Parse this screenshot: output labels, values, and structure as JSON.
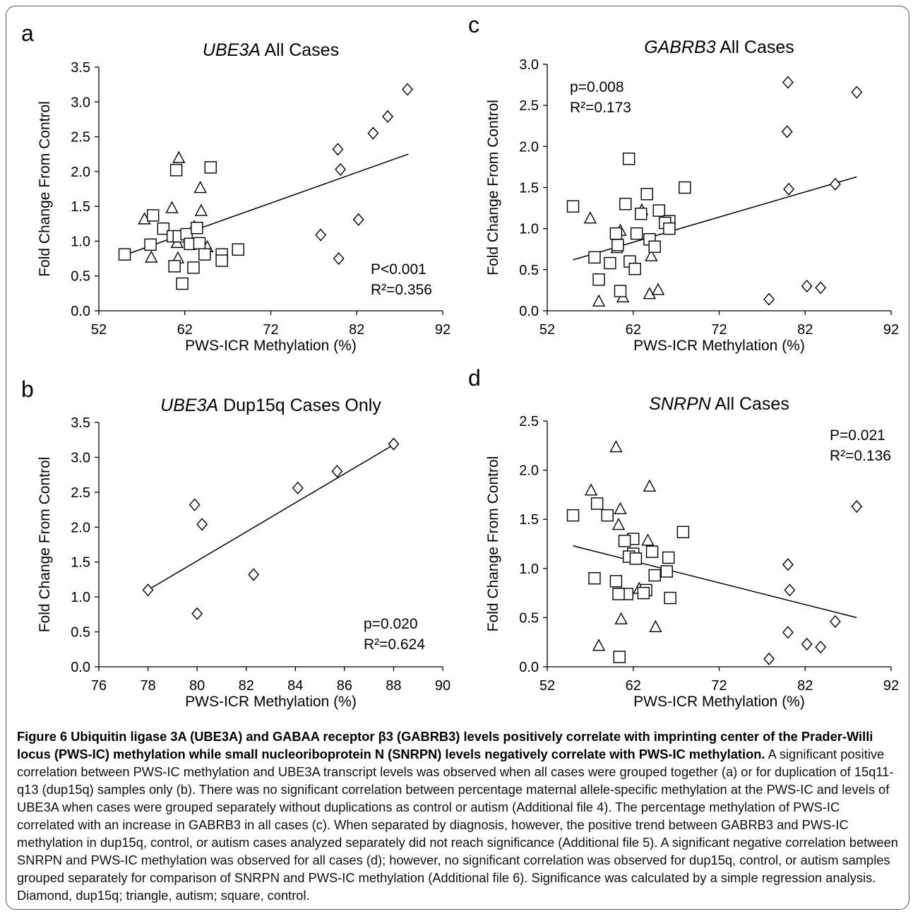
{
  "figure": {
    "caption_title": "Figure 6 Ubiquitin ligase 3A (UBE3A) and GABAA receptor β3 (GABRB3) levels positively correlate with imprinting center of the Prader-Willi locus (PWS-IC) methylation while small nucleoriboprotein N (SNRPN) levels negatively correlate with PWS-IC methylation.",
    "caption_body": "A significant positive correlation between PWS-IC methylation and UBE3A transcript levels was observed when all cases were grouped together (a) or for duplication of 15q11-q13 (dup15q) samples only (b). There was no significant correlation between percentage maternal allele-specific methylation at the PWS-IC and levels of UBE3A when cases were grouped separately without duplications as control or autism (Additional file 4). The percentage methylation of PWS-IC correlated with an increase in GABRB3 in all cases (c). When separated by diagnosis, however, the positive trend between GABRB3 and PWS-IC methylation in dup15q, control, or autism cases analyzed separately did not reach significance (Additional file 5). A significant negative correlation between SNRPN and PWS-IC methylation was observed for all cases (d); however, no significant correlation was observed for dup15q, control, or autism samples grouped separately for comparison of SNRPN and PWS-IC methylation (Additional file 6). Significance was calculated by a simple regression analysis. Diamond, dup15q; triangle, autism; square, control."
  },
  "chart_data": [
    {
      "panel": "a",
      "type": "scatter",
      "title_gene": "UBE3A",
      "title_rest": "All Cases",
      "xlabel": "PWS-ICR Methylation (%)",
      "ylabel": "Fold Change From Control",
      "xlim": [
        52,
        92
      ],
      "ylim": [
        0,
        3.5
      ],
      "xticks": [
        52,
        62,
        72,
        82,
        92
      ],
      "yticks": [
        0,
        0.5,
        1,
        1.5,
        2,
        2.5,
        3,
        3.5
      ],
      "tick_decimals": 1,
      "stat1": "P<0.001",
      "stat2": "R²=0.356",
      "trendline": [
        [
          55,
          0.8
        ],
        [
          88,
          2.25
        ]
      ],
      "series": [
        {
          "shape": "diamond",
          "points": [
            [
              79.8,
              2.32
            ],
            [
              80.1,
              2.03
            ],
            [
              83.9,
              2.55
            ],
            [
              85.6,
              2.79
            ],
            [
              87.9,
              3.18
            ],
            [
              77.8,
              1.09
            ],
            [
              82.2,
              1.31
            ],
            [
              79.9,
              0.75
            ]
          ]
        },
        {
          "shape": "triangle",
          "points": [
            [
              61.3,
              2.19
            ],
            [
              57.3,
              1.31
            ],
            [
              60.5,
              1.47
            ],
            [
              61.1,
              0.97
            ],
            [
              58.1,
              0.76
            ],
            [
              61.2,
              0.75
            ],
            [
              63.8,
              1.76
            ],
            [
              63.9,
              1.43
            ],
            [
              63.1,
              1.2
            ],
            [
              64.6,
              0.91
            ]
          ]
        },
        {
          "shape": "square",
          "points": [
            [
              55,
              0.81
            ],
            [
              58,
              0.95
            ],
            [
              58.3,
              1.37
            ],
            [
              59.5,
              1.18
            ],
            [
              61,
              2.02
            ],
            [
              65,
              2.06
            ],
            [
              60.6,
              1.07
            ],
            [
              61.3,
              1.07
            ],
            [
              62.2,
              1.1
            ],
            [
              62.6,
              0.96
            ],
            [
              63.4,
              1.19
            ],
            [
              63.7,
              0.97
            ],
            [
              64.3,
              0.81
            ],
            [
              66.3,
              0.81
            ],
            [
              66.3,
              0.72
            ],
            [
              68.2,
              0.88
            ],
            [
              60.8,
              0.64
            ],
            [
              63,
              0.62
            ],
            [
              61.7,
              0.39
            ]
          ]
        }
      ]
    },
    {
      "panel": "b",
      "type": "scatter",
      "title_gene": "UBE3A",
      "title_rest": "Dup15q Cases Only",
      "xlabel": "PWS-ICR Methylation (%)",
      "ylabel": "Fold Change From Control",
      "xlim": [
        76,
        90
      ],
      "ylim": [
        0,
        3.5
      ],
      "xticks": [
        76,
        78,
        80,
        82,
        84,
        86,
        88,
        90
      ],
      "yticks": [
        0,
        0.5,
        1,
        1.5,
        2,
        2.5,
        3,
        3.5
      ],
      "tick_decimals": 1,
      "stat1": "p=0.020",
      "stat2": "R²=0.624",
      "trendline": [
        [
          78,
          1.1
        ],
        [
          88,
          3.18
        ]
      ],
      "series": [
        {
          "shape": "diamond",
          "points": [
            [
              78,
              1.1
            ],
            [
              79.9,
              2.32
            ],
            [
              80.2,
              2.04
            ],
            [
              80,
              0.76
            ],
            [
              82.3,
              1.32
            ],
            [
              84.1,
              2.56
            ],
            [
              85.7,
              2.8
            ],
            [
              88,
              3.19
            ]
          ]
        }
      ]
    },
    {
      "panel": "c",
      "type": "scatter",
      "title_gene": "GABRB3",
      "title_rest": "All Cases",
      "xlabel": "PWS-ICR Methylation (%)",
      "ylabel": "Fold Change From Control",
      "xlim": [
        52,
        92
      ],
      "ylim": [
        0,
        3.0
      ],
      "xticks": [
        52,
        62,
        72,
        82,
        92
      ],
      "yticks": [
        0,
        0.5,
        1,
        1.5,
        2,
        2.5,
        3
      ],
      "tick_decimals": 1,
      "stat1": "p=0.008",
      "stat2": "R²=0.173",
      "trendline": [
        [
          55,
          0.62
        ],
        [
          88,
          1.63
        ]
      ],
      "series": [
        {
          "shape": "diamond",
          "points": [
            [
              80,
              2.78
            ],
            [
              88,
              2.66
            ],
            [
              79.9,
              2.18
            ],
            [
              80.1,
              1.48
            ],
            [
              85.5,
              1.54
            ],
            [
              82.2,
              0.3
            ],
            [
              83.8,
              0.28
            ],
            [
              77.8,
              0.14
            ]
          ]
        },
        {
          "shape": "triangle",
          "points": [
            [
              57,
              1.12
            ],
            [
              60.5,
              0.97
            ],
            [
              60.1,
              0.76
            ],
            [
              63,
              1.22
            ],
            [
              64.1,
              0.66
            ],
            [
              63.9,
              0.2
            ],
            [
              64.9,
              0.25
            ],
            [
              60.8,
              0.16
            ],
            [
              58,
              0.11
            ]
          ]
        },
        {
          "shape": "square",
          "points": [
            [
              55,
              1.27
            ],
            [
              61.5,
              1.85
            ],
            [
              61.1,
              1.3
            ],
            [
              63.6,
              1.42
            ],
            [
              68,
              1.5
            ],
            [
              65,
              1.22
            ],
            [
              62.9,
              1.18
            ],
            [
              66.2,
              1.09
            ],
            [
              65.7,
              1.07
            ],
            [
              66.2,
              1.0
            ],
            [
              57.5,
              0.65
            ],
            [
              58,
              0.38
            ],
            [
              59.3,
              0.58
            ],
            [
              60,
              0.94
            ],
            [
              61.6,
              0.6
            ],
            [
              62.2,
              0.51
            ],
            [
              60.2,
              0.8
            ],
            [
              62.4,
              0.94
            ],
            [
              63.9,
              0.87
            ],
            [
              64.5,
              0.78
            ],
            [
              60.5,
              0.24
            ]
          ]
        }
      ]
    },
    {
      "panel": "d",
      "type": "scatter",
      "title_gene": "SNRPN",
      "title_rest": "All Cases",
      "xlabel": "PWS-ICR Methylation (%)",
      "ylabel": "Fold Change From Control",
      "xlim": [
        52,
        92
      ],
      "ylim": [
        0,
        2.5
      ],
      "xticks": [
        52,
        62,
        72,
        82,
        92
      ],
      "yticks": [
        0,
        0.5,
        1,
        1.5,
        2,
        2.5
      ],
      "tick_decimals": 1,
      "stat1": "P=0.021",
      "stat2": "R²=0.136",
      "trendline": [
        [
          55,
          1.23
        ],
        [
          88,
          0.5
        ]
      ],
      "series": [
        {
          "shape": "diamond",
          "points": [
            [
              88,
              1.63
            ],
            [
              80,
              1.04
            ],
            [
              80.2,
              0.78
            ],
            [
              80,
              0.35
            ],
            [
              85.5,
              0.46
            ],
            [
              82.2,
              0.23
            ],
            [
              83.8,
              0.2
            ],
            [
              77.8,
              0.08
            ]
          ]
        },
        {
          "shape": "triangle",
          "points": [
            [
              60,
              2.23
            ],
            [
              57.1,
              1.79
            ],
            [
              63.9,
              1.83
            ],
            [
              60.5,
              1.6
            ],
            [
              60.3,
              1.44
            ],
            [
              63.7,
              1.28
            ],
            [
              62.7,
              0.79
            ],
            [
              60.6,
              0.48
            ],
            [
              64.6,
              0.4
            ],
            [
              58,
              0.21
            ]
          ]
        },
        {
          "shape": "square",
          "points": [
            [
              55,
              1.54
            ],
            [
              57.8,
              1.66
            ],
            [
              59,
              1.54
            ],
            [
              67.8,
              1.37
            ],
            [
              62,
              1.3
            ],
            [
              61,
              1.28
            ],
            [
              62,
              1.15
            ],
            [
              61.5,
              1.12
            ],
            [
              64.2,
              1.17
            ],
            [
              66.1,
              1.11
            ],
            [
              62.3,
              1.1
            ],
            [
              65.9,
              0.97
            ],
            [
              64.5,
              0.93
            ],
            [
              57.5,
              0.9
            ],
            [
              60,
              0.87
            ],
            [
              63.5,
              0.78
            ],
            [
              63.2,
              0.75
            ],
            [
              61.3,
              0.74
            ],
            [
              60.3,
              0.74
            ],
            [
              66.3,
              0.7
            ],
            [
              60.4,
              0.1
            ]
          ]
        }
      ]
    }
  ]
}
